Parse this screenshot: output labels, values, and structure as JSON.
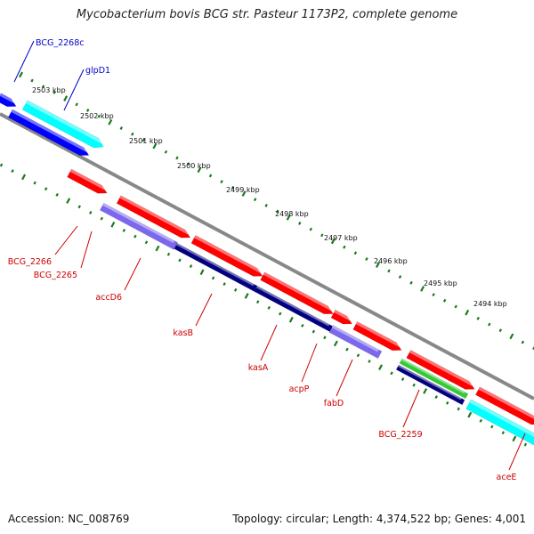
{
  "title": "Mycobacterium bovis BCG str. Pasteur 1173P2, complete genome",
  "footer": {
    "accession": "Accession: NC_008769",
    "topology": "Topology: circular; Length: 4,374,522 bp; Genes: 4,001"
  },
  "colors": {
    "backbone": "#888888",
    "tick": "#1a7a1a",
    "label_blue": "#0000cc",
    "label_red": "#cc0000",
    "cyan": "#00ffff",
    "blue": "#0000ff",
    "red": "#ff0000",
    "violet": "#7b68ee",
    "navy": "#000080",
    "green": "#33cc33"
  },
  "ruler": [
    "2503 kbp",
    "2502 kbp",
    "2501 kbp",
    "2500 kbp",
    "2499 kbp",
    "2498 kbp",
    "2497 kbp",
    "2496 kbp",
    "2495 kbp",
    "2494 kbp"
  ],
  "genes": [
    {
      "label": "BCG_2268c",
      "label_color": "blue",
      "color": "blue"
    },
    {
      "label": "glpD1",
      "label_color": "blue",
      "color": "cyan"
    },
    {
      "label": "BCG_2266",
      "label_color": "red",
      "color": "red"
    },
    {
      "label": "BCG_2265",
      "label_color": "red",
      "color": "red"
    },
    {
      "label": "accD6",
      "label_color": "red",
      "color": "violet"
    },
    {
      "label": "kasB",
      "label_color": "red",
      "color": "navy"
    },
    {
      "label": "kasA",
      "label_color": "red",
      "color": "red"
    },
    {
      "label": "acpP",
      "label_color": "red",
      "color": "red"
    },
    {
      "label": "fabD",
      "label_color": "red",
      "color": "violet"
    },
    {
      "label": "BCG_2259",
      "label_color": "red",
      "color": "navy"
    },
    {
      "label": "aceE",
      "label_color": "red",
      "color": "cyan"
    }
  ]
}
